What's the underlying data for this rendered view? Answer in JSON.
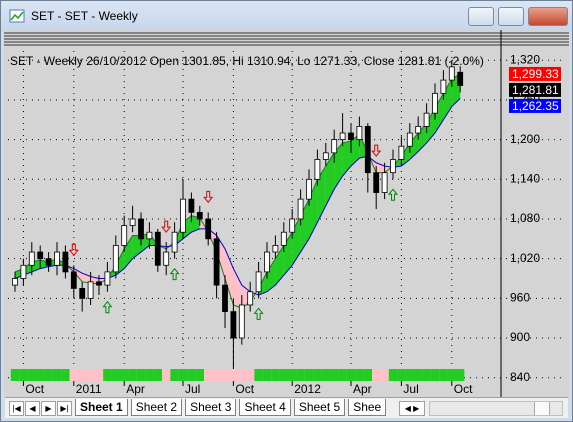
{
  "window": {
    "title": "SET - SET - Weekly"
  },
  "chart_data": {
    "type": "candlestick",
    "title": "SET - Weekly 26/10/2012 Open 1301.85, Hi 1310.94, Lo 1271.33, Close 1281.81 (-2.0%)",
    "open": [
      980,
      990,
      1010,
      1030,
      1020,
      1010,
      1030,
      1000,
      975,
      960,
      985,
      980,
      1000,
      1040,
      1070,
      1080,
      1050,
      1060,
      1010,
      1030,
      1060,
      1110,
      1090,
      1080,
      1050,
      980,
      940,
      900,
      950,
      970,
      1000,
      1030,
      1040,
      1060,
      1080,
      1110,
      1140,
      1170,
      1180,
      1200,
      1210,
      1200,
      1220,
      1150,
      1120,
      1150,
      1170,
      1190,
      1210,
      1220,
      1240,
      1270,
      1290,
      1301.85
    ],
    "high": [
      1000,
      1020,
      1045,
      1040,
      1030,
      1045,
      1040,
      1010,
      985,
      1000,
      995,
      1015,
      1055,
      1085,
      1100,
      1090,
      1075,
      1065,
      1045,
      1075,
      1140,
      1120,
      1100,
      1090,
      1060,
      995,
      960,
      965,
      985,
      1015,
      1045,
      1055,
      1075,
      1095,
      1125,
      1155,
      1185,
      1195,
      1215,
      1240,
      1225,
      1235,
      1225,
      1160,
      1165,
      1185,
      1205,
      1225,
      1235,
      1255,
      1285,
      1305,
      1320,
      1310.94
    ],
    "low": [
      970,
      980,
      995,
      1005,
      1000,
      995,
      990,
      960,
      940,
      950,
      965,
      970,
      990,
      1030,
      1060,
      1040,
      1035,
      1000,
      995,
      1020,
      1050,
      1075,
      1070,
      1040,
      960,
      915,
      850,
      890,
      940,
      960,
      990,
      1020,
      1030,
      1050,
      1070,
      1100,
      1130,
      1160,
      1165,
      1190,
      1180,
      1190,
      1120,
      1095,
      1110,
      1140,
      1160,
      1180,
      1200,
      1210,
      1230,
      1260,
      1280,
      1271.33
    ],
    "close": [
      990,
      1010,
      1030,
      1020,
      1010,
      1030,
      1000,
      975,
      960,
      985,
      980,
      1000,
      1040,
      1070,
      1080,
      1050,
      1060,
      1010,
      1030,
      1060,
      1110,
      1090,
      1080,
      1050,
      980,
      940,
      900,
      950,
      970,
      1000,
      1030,
      1040,
      1060,
      1080,
      1110,
      1140,
      1170,
      1180,
      1200,
      1210,
      1200,
      1220,
      1150,
      1120,
      1150,
      1170,
      1190,
      1210,
      1220,
      1240,
      1270,
      1290,
      1310,
      1281.81
    ],
    "series": [
      {
        "color": "#1a7a1a",
        "values": [
          1000,
          1005,
          1015,
          1018,
          1015,
          1020,
          1012,
          1000,
          985,
          983,
          982,
          990,
          1010,
          1035,
          1055,
          1055,
          1058,
          1040,
          1035,
          1045,
          1075,
          1085,
          1082,
          1060,
          1030,
          990,
          950,
          945,
          955,
          975,
          1000,
          1020,
          1040,
          1060,
          1085,
          1110,
          1140,
          1160,
          1180,
          1195,
          1198,
          1208,
          1180,
          1150,
          1150,
          1160,
          1175,
          1195,
          1210,
          1225,
          1248,
          1270,
          1292,
          1299.33
        ]
      },
      {
        "color": "#0000cc",
        "values": [
          990,
          995,
          1000,
          1005,
          1008,
          1010,
          1010,
          1005,
          998,
          993,
          990,
          990,
          995,
          1005,
          1020,
          1030,
          1040,
          1040,
          1038,
          1040,
          1050,
          1060,
          1065,
          1065,
          1055,
          1035,
          1005,
          980,
          970,
          965,
          970,
          980,
          995,
          1010,
          1030,
          1050,
          1075,
          1100,
          1125,
          1145,
          1160,
          1172,
          1175,
          1165,
          1160,
          1158,
          1160,
          1170,
          1182,
          1195,
          1210,
          1230,
          1250,
          1262.35
        ]
      }
    ],
    "up_color": "#22cc22",
    "down_color": "#ffc0c8",
    "price_labels": [
      {
        "value": 1299.33,
        "label": "1,299.33",
        "color": "#ff0000"
      },
      {
        "value": 1281.81,
        "label": "1,281.81",
        "color": "#000000"
      },
      {
        "value": 1262.35,
        "label": "1,262.35",
        "color": "#0000ff"
      }
    ],
    "ylim": [
      832,
      1334
    ],
    "yticks": [
      840,
      900,
      960,
      {
        "value": 1020,
        "label": "1,020"
      },
      {
        "value": 1080,
        "label": "1,080"
      },
      {
        "value": 1140,
        "label": "1,140"
      },
      {
        "value": 1200,
        "label": "1,200"
      },
      {
        "value": 1260,
        "label": "1,260"
      },
      {
        "value": 1320,
        "label": "1,320"
      }
    ],
    "xticks": [
      {
        "value": 1,
        "label": "Oct"
      },
      {
        "value": 7,
        "label": "2011"
      },
      {
        "value": 13,
        "label": "Apr"
      },
      {
        "value": 20,
        "label": "Jul"
      },
      {
        "value": 26,
        "label": "Oct"
      },
      {
        "value": 33,
        "label": "2012"
      },
      {
        "value": 40,
        "label": "Apr"
      },
      {
        "value": 46,
        "label": "Jul"
      },
      {
        "value": 52,
        "label": "Oct"
      }
    ],
    "grid": true
  },
  "tabs": [
    "Sheet 1",
    "Sheet 2",
    "Sheet 3",
    "Sheet 4",
    "Sheet 5",
    "Shee"
  ]
}
